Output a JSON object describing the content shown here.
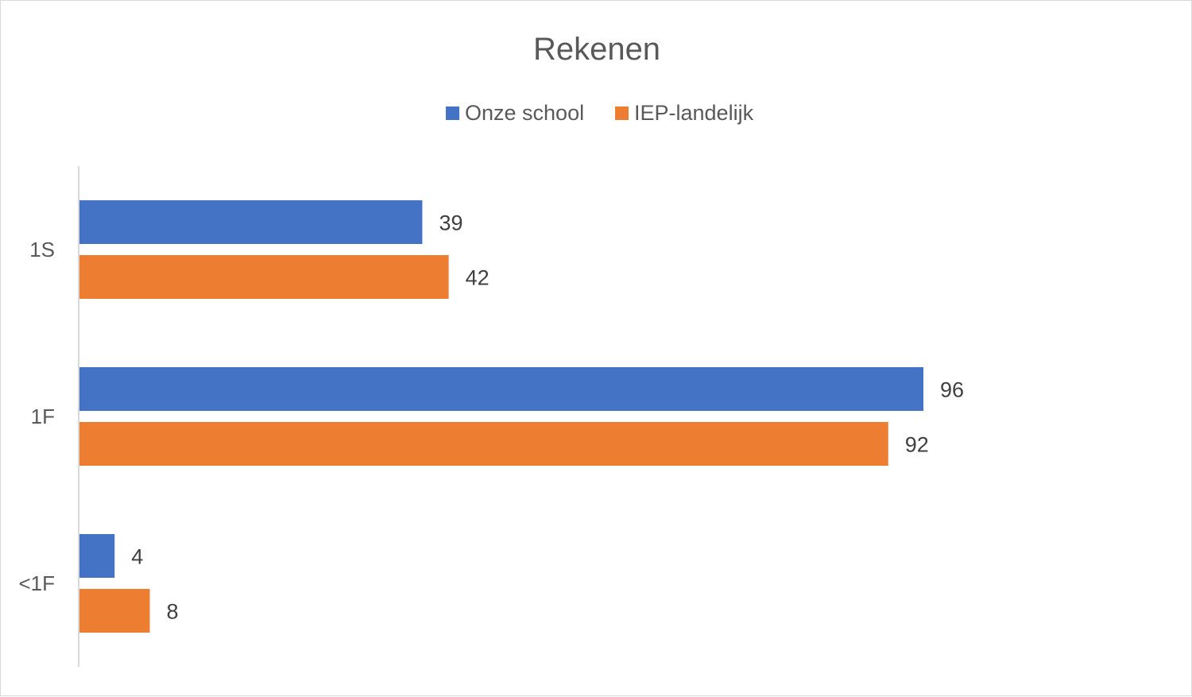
{
  "chart_data": {
    "type": "bar",
    "orientation": "horizontal",
    "title": "Rekenen",
    "categories": [
      "1S",
      "1F",
      "<1F"
    ],
    "series": [
      {
        "name": "Onze school",
        "values": [
          39,
          96,
          4
        ],
        "color": "#4472C4"
      },
      {
        "name": "IEP-landelijk",
        "values": [
          42,
          92,
          8
        ],
        "color": "#ED7D31"
      }
    ],
    "xlabel": "",
    "ylabel": "",
    "xlim": [
      0,
      100
    ],
    "grid": false,
    "legend": "top",
    "data_labels": true
  }
}
